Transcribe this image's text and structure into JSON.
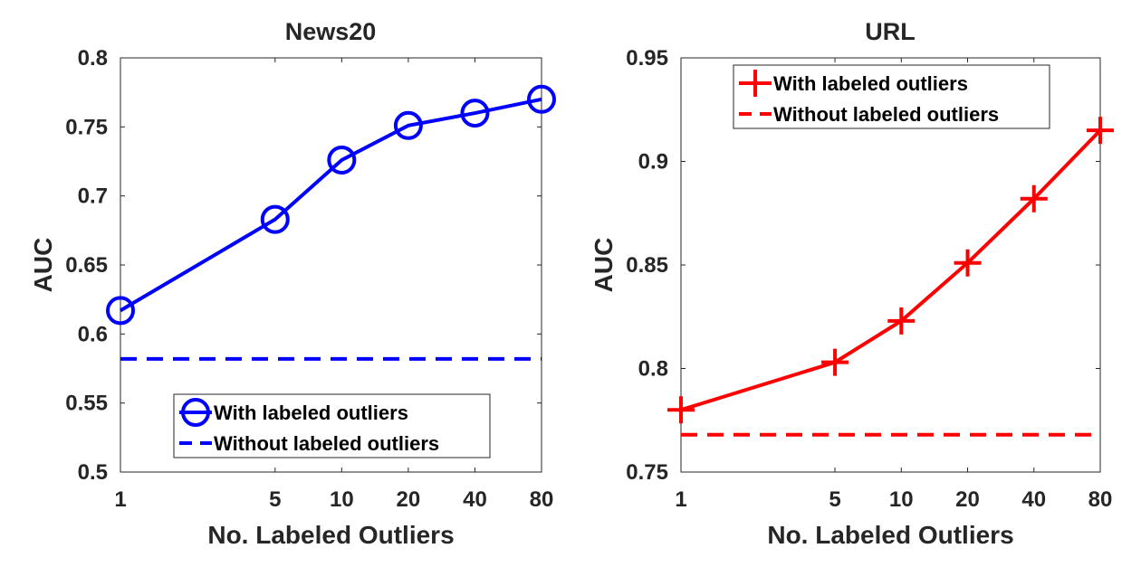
{
  "chart_data": [
    {
      "type": "line",
      "title": "News20",
      "xlabel": "No. Labeled Outliers",
      "ylabel": "AUC",
      "xscale": "log",
      "x_ticks": [
        1,
        5,
        10,
        20,
        40,
        80
      ],
      "x_tick_labels": [
        "1",
        "5",
        "10",
        "20",
        "40",
        "80"
      ],
      "ylim": [
        0.5,
        0.8
      ],
      "y_ticks": [
        0.5,
        0.55,
        0.6,
        0.65,
        0.7,
        0.75,
        0.8
      ],
      "y_tick_labels": [
        "0.5",
        "0.55",
        "0.6",
        "0.65",
        "0.7",
        "0.75",
        "0.8"
      ],
      "color": "#0000ff",
      "legend_position": "bottom-right",
      "series": [
        {
          "name": "With labeled outliers",
          "style": "solid",
          "marker": "circle",
          "x": [
            1,
            5,
            10,
            20,
            40,
            80
          ],
          "y": [
            0.617,
            0.683,
            0.726,
            0.751,
            0.76,
            0.77
          ]
        },
        {
          "name": "Without labeled outliers",
          "style": "dashed",
          "marker": "none",
          "x": [
            1,
            80
          ],
          "y": [
            0.582,
            0.582
          ]
        }
      ]
    },
    {
      "type": "line",
      "title": "URL",
      "xlabel": "No. Labeled Outliers",
      "ylabel": "AUC",
      "xscale": "log",
      "x_ticks": [
        1,
        5,
        10,
        20,
        40,
        80
      ],
      "x_tick_labels": [
        "1",
        "5",
        "10",
        "20",
        "40",
        "80"
      ],
      "ylim": [
        0.75,
        0.95
      ],
      "y_ticks": [
        0.75,
        0.8,
        0.85,
        0.9,
        0.95
      ],
      "y_tick_labels": [
        "0.75",
        "0.8",
        "0.85",
        "0.9",
        "0.95"
      ],
      "color": "#ff0000",
      "legend_position": "top",
      "series": [
        {
          "name": "With labeled outliers",
          "style": "solid",
          "marker": "plus",
          "x": [
            1,
            5,
            10,
            20,
            40,
            80
          ],
          "y": [
            0.78,
            0.803,
            0.823,
            0.851,
            0.882,
            0.915
          ]
        },
        {
          "name": "Without labeled outliers",
          "style": "dashed",
          "marker": "none",
          "x": [
            1,
            80
          ],
          "y": [
            0.768,
            0.768
          ]
        }
      ]
    }
  ]
}
